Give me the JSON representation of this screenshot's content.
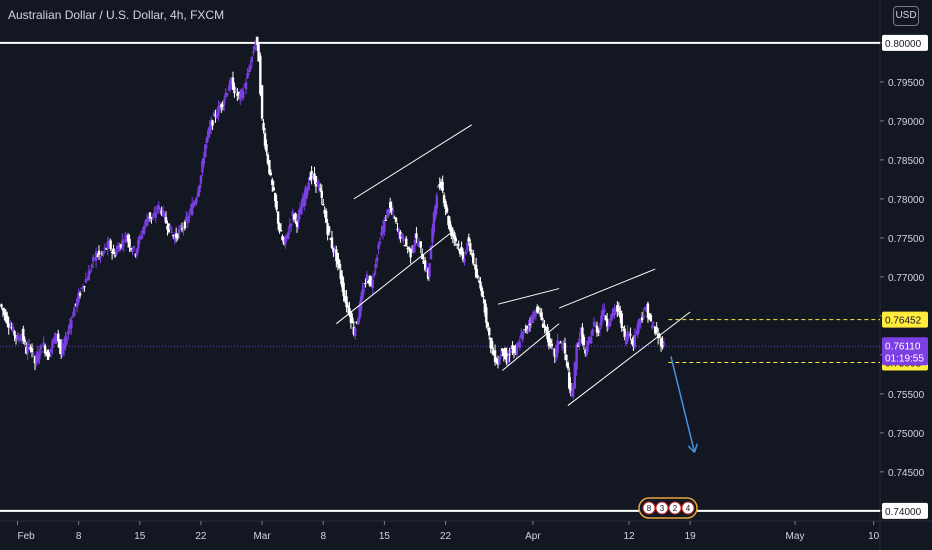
{
  "header": {
    "title": "Australian Dollar / U.S. Dollar, 4h, FXCM",
    "currency_button": "USD"
  },
  "colors": {
    "background": "#131722",
    "up_candle": "#7b3fe4",
    "down_candle": "#ffffff",
    "axis_text": "#d1d4dc",
    "level_line": "#ffffff",
    "price_label_bg": "#ffffff",
    "current_price_bg": "#7b3fe4",
    "dashed_level_bg": "#ffeb3b",
    "arrow": "#4a90e2"
  },
  "chart_data": {
    "type": "candlestick",
    "title": "Australian Dollar / U.S. Dollar, 4h, FXCM",
    "y_ticks": [
      "0.80000",
      "0.79500",
      "0.79000",
      "0.78500",
      "0.78000",
      "0.77500",
      "0.77000",
      "0.76500",
      "0.76000",
      "0.75500",
      "0.75000",
      "0.74500",
      "0.74000"
    ],
    "ylim": [
      0.7387,
      0.8055
    ],
    "x_ticks": [
      "Feb",
      "8",
      "15",
      "22",
      "Mar",
      "8",
      "15",
      "22",
      "Apr",
      "12",
      "19",
      "May",
      "10"
    ],
    "x_tick_days": [
      0,
      7,
      14,
      21,
      28,
      35,
      42,
      49,
      59,
      70,
      77,
      89,
      98
    ],
    "x_range_days": [
      -2,
      98.5
    ],
    "series_close": [
      [
        -2,
        0.7665
      ],
      [
        -1,
        0.764
      ],
      [
        0,
        0.762
      ],
      [
        0.5,
        0.7628
      ],
      [
        1,
        0.7605
      ],
      [
        1.5,
        0.7612
      ],
      [
        2,
        0.759
      ],
      [
        2.5,
        0.7605
      ],
      [
        3,
        0.7612
      ],
      [
        3.5,
        0.7598
      ],
      [
        4,
        0.7615
      ],
      [
        4.5,
        0.7628
      ],
      [
        5,
        0.7601
      ],
      [
        5.5,
        0.7618
      ],
      [
        6,
        0.764
      ],
      [
        6.5,
        0.766
      ],
      [
        7,
        0.7675
      ],
      [
        7.5,
        0.769
      ],
      [
        8,
        0.77
      ],
      [
        8.5,
        0.7715
      ],
      [
        9,
        0.773
      ],
      [
        9.5,
        0.7725
      ],
      [
        10,
        0.7735
      ],
      [
        10.5,
        0.7742
      ],
      [
        11,
        0.7728
      ],
      [
        11.5,
        0.7738
      ],
      [
        12,
        0.7745
      ],
      [
        12.5,
        0.7752
      ],
      [
        13,
        0.7738
      ],
      [
        13.5,
        0.7732
      ],
      [
        14,
        0.775
      ],
      [
        14.5,
        0.7765
      ],
      [
        15,
        0.778
      ],
      [
        15.5,
        0.7772
      ],
      [
        16,
        0.779
      ],
      [
        16.5,
        0.7785
      ],
      [
        17,
        0.777
      ],
      [
        17.5,
        0.776
      ],
      [
        18,
        0.775
      ],
      [
        18.5,
        0.7758
      ],
      [
        19,
        0.7765
      ],
      [
        19.5,
        0.7775
      ],
      [
        20,
        0.779
      ],
      [
        20.5,
        0.7805
      ],
      [
        21,
        0.783
      ],
      [
        21.5,
        0.787
      ],
      [
        22,
        0.789
      ],
      [
        22.5,
        0.7905
      ],
      [
        23,
        0.7915
      ],
      [
        23.5,
        0.7925
      ],
      [
        24,
        0.794
      ],
      [
        24.5,
        0.795
      ],
      [
        25,
        0.7935
      ],
      [
        25.5,
        0.793
      ],
      [
        26,
        0.7945
      ],
      [
        26.5,
        0.7965
      ],
      [
        27,
        0.799
      ],
      [
        27.3,
        0.8005
      ],
      [
        27.6,
        0.798
      ],
      [
        28,
        0.79
      ],
      [
        28.5,
        0.786
      ],
      [
        29,
        0.7825
      ],
      [
        29.5,
        0.7795
      ],
      [
        30,
        0.776
      ],
      [
        30.5,
        0.774
      ],
      [
        31,
        0.776
      ],
      [
        31.5,
        0.778
      ],
      [
        32,
        0.777
      ],
      [
        32.5,
        0.779
      ],
      [
        33,
        0.781
      ],
      [
        33.5,
        0.783
      ],
      [
        34,
        0.7825
      ],
      [
        34.5,
        0.7815
      ],
      [
        35,
        0.779
      ],
      [
        35.5,
        0.776
      ],
      [
        36,
        0.774
      ],
      [
        36.5,
        0.7725
      ],
      [
        37,
        0.77
      ],
      [
        37.5,
        0.767
      ],
      [
        38,
        0.7655
      ],
      [
        38.5,
        0.763
      ],
      [
        39,
        0.765
      ],
      [
        39.5,
        0.768
      ],
      [
        40,
        0.77
      ],
      [
        40.5,
        0.769
      ],
      [
        41,
        0.772
      ],
      [
        41.5,
        0.775
      ],
      [
        42,
        0.777
      ],
      [
        42.5,
        0.779
      ],
      [
        43,
        0.778
      ],
      [
        43.5,
        0.776
      ],
      [
        44,
        0.775
      ],
      [
        44.5,
        0.774
      ],
      [
        45,
        0.773
      ],
      [
        45.5,
        0.775
      ],
      [
        46,
        0.774
      ],
      [
        46.5,
        0.772
      ],
      [
        47,
        0.77
      ],
      [
        47.5,
        0.776
      ],
      [
        48,
        0.781
      ],
      [
        48.5,
        0.782
      ],
      [
        49,
        0.779
      ],
      [
        49.5,
        0.776
      ],
      [
        50,
        0.775
      ],
      [
        50.5,
        0.774
      ],
      [
        51,
        0.772
      ],
      [
        51.5,
        0.7745
      ],
      [
        52,
        0.773
      ],
      [
        52.5,
        0.77
      ],
      [
        53,
        0.769
      ],
      [
        53.5,
        0.766
      ],
      [
        54,
        0.762
      ],
      [
        54.5,
        0.76
      ],
      [
        55,
        0.759
      ],
      [
        55.5,
        0.761
      ],
      [
        56,
        0.759
      ],
      [
        56.5,
        0.761
      ],
      [
        57,
        0.76
      ],
      [
        57.5,
        0.762
      ],
      [
        58,
        0.763
      ],
      [
        58.5,
        0.764
      ],
      [
        59,
        0.765
      ],
      [
        59.5,
        0.766
      ],
      [
        60,
        0.7645
      ],
      [
        60.5,
        0.763
      ],
      [
        61,
        0.761
      ],
      [
        61.5,
        0.76
      ],
      [
        62,
        0.762
      ],
      [
        62.5,
        0.761
      ],
      [
        63,
        0.758
      ],
      [
        63.3,
        0.7545
      ],
      [
        63.6,
        0.756
      ],
      [
        64,
        0.761
      ],
      [
        64.5,
        0.763
      ],
      [
        65,
        0.76
      ],
      [
        65.5,
        0.762
      ],
      [
        66,
        0.764
      ],
      [
        66.5,
        0.763
      ],
      [
        67,
        0.766
      ],
      [
        67.5,
        0.764
      ],
      [
        68,
        0.765
      ],
      [
        68.5,
        0.766
      ],
      [
        69,
        0.765
      ],
      [
        69.5,
        0.762
      ],
      [
        70,
        0.763
      ],
      [
        70.5,
        0.7615
      ],
      [
        71,
        0.764
      ],
      [
        71.5,
        0.765
      ],
      [
        72,
        0.766
      ],
      [
        72.5,
        0.764
      ],
      [
        73,
        0.763
      ],
      [
        73.5,
        0.762
      ],
      [
        74,
        0.7611
      ]
    ],
    "horizontal_levels": [
      "0.80000",
      "0.74000"
    ],
    "dashed_levels": [
      "0.76452",
      "0.75903"
    ],
    "current_price": "0.76110",
    "countdown": "01:19:55",
    "trend_lines": [
      {
        "from": [
          36.5,
          0.764
        ],
        "to": [
          50,
          0.776
        ]
      },
      {
        "from": [
          38.5,
          0.78
        ],
        "to": [
          52,
          0.7895
        ]
      },
      {
        "from": [
          55.5,
          0.758
        ],
        "to": [
          62,
          0.764
        ]
      },
      {
        "from": [
          55,
          0.7665
        ],
        "to": [
          62,
          0.7685
        ]
      },
      {
        "from": [
          63,
          0.7535
        ],
        "to": [
          77,
          0.7655
        ]
      },
      {
        "from": [
          62,
          0.766
        ],
        "to": [
          73,
          0.771
        ]
      }
    ],
    "projection_arrow": {
      "from": [
        74.8,
        0.7598
      ],
      "to": [
        77.5,
        0.7475
      ]
    },
    "event_icons": [
      "8",
      "3",
      "2",
      "4"
    ]
  }
}
